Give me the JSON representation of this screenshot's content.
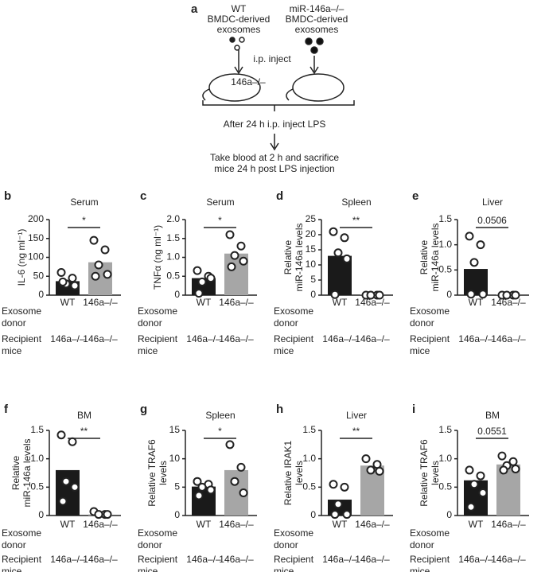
{
  "panel_a": {
    "label": "a",
    "left_source": [
      "WT",
      "BMDC-derived",
      "exosomes"
    ],
    "right_source": [
      "miR-146a–/–",
      "BMDC-derived",
      "exosomes"
    ],
    "inject": "i.p. inject",
    "mouse_genotype": "146a–/–",
    "step1": "After 24 h i.p. inject LPS",
    "step2": [
      "Take blood at 2 h and sacrifice",
      "mice 24 h post LPS injection"
    ]
  },
  "chart_data": [
    {
      "type": "bar",
      "panel": "b",
      "title": "Serum",
      "y_label": [
        "IL-6 (ng ml⁻¹)"
      ],
      "categories": [
        "WT",
        "146a–/–"
      ],
      "colors": [
        "#1a1a1a",
        "#a6a6a6"
      ],
      "values": [
        37,
        87
      ],
      "points": [
        [
          60,
          45,
          30,
          25,
          35
        ],
        [
          145,
          120,
          80,
          55,
          50
        ]
      ],
      "ylim": [
        0,
        200
      ],
      "yticks": [
        0,
        50,
        100,
        150,
        200
      ],
      "significance": "*",
      "donor_label": [
        "Exosome",
        "donor"
      ],
      "recipient_label": [
        "Recipient",
        "mice"
      ],
      "recipients": [
        "146a–/–",
        "146a–/–"
      ]
    },
    {
      "type": "bar",
      "panel": "c",
      "title": "Serum",
      "y_label": [
        "TNFα (ng ml⁻¹)"
      ],
      "categories": [
        "WT",
        "146a–/–"
      ],
      "colors": [
        "#1a1a1a",
        "#a6a6a6"
      ],
      "values": [
        0.45,
        1.1
      ],
      "points": [
        [
          0.65,
          0.5,
          0.35,
          0.45,
          0.05
        ],
        [
          1.6,
          1.3,
          1.05,
          0.9,
          0.75
        ]
      ],
      "ylim": [
        0,
        2
      ],
      "yticks": [
        0,
        0.5,
        {
          "value": 1,
          "label": "1.0"
        },
        1.5,
        {
          "value": 2,
          "label": "2.0"
        }
      ],
      "significance": "*",
      "donor_label": [
        "Exosome",
        "donor"
      ],
      "recipient_label": [
        "Recipient",
        "mice"
      ],
      "recipients": [
        "146a–/–",
        "146a–/–"
      ]
    },
    {
      "type": "bar",
      "panel": "d",
      "title": "Spleen",
      "y_label": [
        "Relative",
        "miR-146a levels"
      ],
      "categories": [
        "WT",
        "146a–/–"
      ],
      "colors": [
        "#1a1a1a",
        "#a6a6a6"
      ],
      "values": [
        13,
        0.1
      ],
      "points": [
        [
          21,
          19,
          14,
          12,
          0.2
        ],
        [
          0,
          0,
          0,
          0
        ]
      ],
      "ylim": [
        0,
        25
      ],
      "yticks": [
        0,
        5,
        10,
        15,
        20,
        25
      ],
      "significance": "**",
      "donor_label": [
        "Exosome",
        "donor"
      ],
      "recipient_label": [
        "Recipient",
        "mice"
      ],
      "recipients": [
        "146a–/–",
        "146a–/–"
      ]
    },
    {
      "type": "bar",
      "panel": "e",
      "title": "Liver",
      "y_label": [
        "Relative",
        "miR-146a levels"
      ],
      "categories": [
        "WT",
        "146a–/–"
      ],
      "colors": [
        "#1a1a1a",
        "#a6a6a6"
      ],
      "values": [
        0.52,
        0.01
      ],
      "points": [
        [
          1.17,
          1.0,
          0.65,
          0.02,
          0.02
        ],
        [
          0,
          0,
          0,
          0
        ]
      ],
      "ylim": [
        0,
        1.5
      ],
      "yticks": [
        0,
        0.5,
        {
          "value": 1,
          "label": "1.0"
        },
        1.5
      ],
      "significance": "0.0506",
      "donor_label": [
        "Exosome",
        "donor"
      ],
      "recipient_label": [
        "Recipient",
        "mice"
      ],
      "recipients": [
        "146a–/–",
        "146a–/–"
      ]
    },
    {
      "type": "bar",
      "panel": "f",
      "title": "BM",
      "y_label": [
        "Relative",
        "miR-146a levels"
      ],
      "categories": [
        "WT",
        "146a–/–"
      ],
      "colors": [
        "#1a1a1a",
        "#a6a6a6"
      ],
      "values": [
        0.8,
        0.02
      ],
      "points": [
        [
          1.42,
          1.3,
          0.6,
          0.5,
          0.25
        ],
        [
          0.07,
          0.02,
          0.02,
          0.02
        ]
      ],
      "ylim": [
        0,
        1.5
      ],
      "yticks": [
        0,
        0.5,
        {
          "value": 1,
          "label": "1.0"
        },
        1.5
      ],
      "significance": "**",
      "donor_label": [
        "Exosome",
        "donor"
      ],
      "recipient_label": [
        "Recipient",
        "mice"
      ],
      "recipients": [
        "146a–/–",
        "146a–/–"
      ]
    },
    {
      "type": "bar",
      "panel": "g",
      "title": "Spleen",
      "y_label": [
        "Relative TRAF6",
        "levels"
      ],
      "categories": [
        "WT",
        "146a–/–"
      ],
      "colors": [
        "#1a1a1a",
        "#a6a6a6"
      ],
      "values": [
        5.1,
        8
      ],
      "points": [
        [
          6,
          5.5,
          5,
          4.5,
          3.5
        ],
        [
          12.5,
          8.5,
          6,
          4
        ]
      ],
      "ylim": [
        0,
        15
      ],
      "yticks": [
        0,
        5,
        10,
        15
      ],
      "significance": "*",
      "donor_label": [
        "Exosome",
        "donor"
      ],
      "recipient_label": [
        "Recipient",
        "mice"
      ],
      "recipients": [
        "146a–/–",
        "146a–/–"
      ]
    },
    {
      "type": "bar",
      "panel": "h",
      "title": "Liver",
      "y_label": [
        "Relative IRAK1",
        "levels"
      ],
      "categories": [
        "WT",
        "146a–/–"
      ],
      "colors": [
        "#1a1a1a",
        "#a6a6a6"
      ],
      "values": [
        0.28,
        0.88
      ],
      "points": [
        [
          0.55,
          0.5,
          0.2,
          0.02,
          0.02
        ],
        [
          1.0,
          0.9,
          0.8,
          0.78
        ]
      ],
      "ylim": [
        0,
        1.5
      ],
      "yticks": [
        0,
        0.5,
        {
          "value": 1,
          "label": "1.0"
        },
        1.5
      ],
      "significance": "**",
      "donor_label": [
        "Exosome",
        "donor"
      ],
      "recipient_label": [
        "Recipient",
        "mice"
      ],
      "recipients": [
        "146a–/–",
        "146a–/–"
      ]
    },
    {
      "type": "bar",
      "panel": "i",
      "title": "BM",
      "y_label": [
        "Relative TRAF6",
        "levels"
      ],
      "categories": [
        "WT",
        "146a–/–"
      ],
      "colors": [
        "#1a1a1a",
        "#a6a6a6"
      ],
      "values": [
        0.62,
        0.9
      ],
      "points": [
        [
          0.8,
          0.7,
          0.55,
          0.4,
          0.15
        ],
        [
          1.05,
          0.95,
          0.88,
          0.82,
          0.8
        ]
      ],
      "ylim": [
        0,
        1.5
      ],
      "yticks": [
        0,
        0.5,
        {
          "value": 1,
          "label": "1.0"
        },
        1.5
      ],
      "significance": "0.0551",
      "donor_label": [
        "Exosome",
        "donor"
      ],
      "recipient_label": [
        "Recipient",
        "mice"
      ],
      "recipients": [
        "146a–/–",
        "146a–/–"
      ]
    }
  ]
}
